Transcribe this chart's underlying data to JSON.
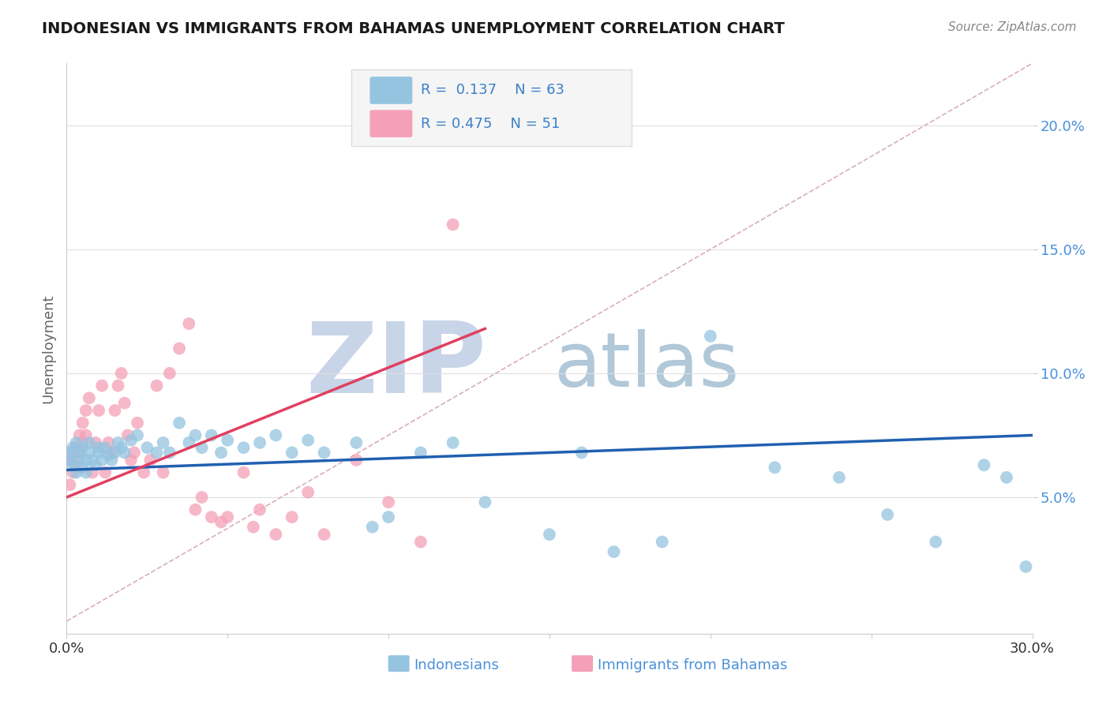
{
  "title": "INDONESIAN VS IMMIGRANTS FROM BAHAMAS UNEMPLOYMENT CORRELATION CHART",
  "source": "Source: ZipAtlas.com",
  "xlabel_blue": "Indonesians",
  "xlabel_pink": "Immigrants from Bahamas",
  "ylabel": "Unemployment",
  "R_blue": 0.137,
  "N_blue": 63,
  "R_pink": 0.475,
  "N_pink": 51,
  "xlim": [
    0.0,
    0.3
  ],
  "ylim": [
    -0.005,
    0.225
  ],
  "yticks": [
    0.05,
    0.1,
    0.15,
    0.2
  ],
  "ytick_labels": [
    "5.0%",
    "10.0%",
    "15.0%",
    "20.0%"
  ],
  "xticks": [
    0.0,
    0.3
  ],
  "xtick_labels": [
    "0.0%",
    "30.0%"
  ],
  "blue_scatter_x": [
    0.001,
    0.001,
    0.002,
    0.002,
    0.003,
    0.003,
    0.004,
    0.004,
    0.005,
    0.005,
    0.006,
    0.006,
    0.007,
    0.007,
    0.008,
    0.009,
    0.01,
    0.01,
    0.011,
    0.012,
    0.013,
    0.014,
    0.015,
    0.016,
    0.017,
    0.018,
    0.02,
    0.022,
    0.025,
    0.028,
    0.03,
    0.032,
    0.035,
    0.038,
    0.04,
    0.042,
    0.045,
    0.048,
    0.05,
    0.055,
    0.06,
    0.065,
    0.07,
    0.075,
    0.08,
    0.09,
    0.095,
    0.1,
    0.11,
    0.12,
    0.13,
    0.15,
    0.16,
    0.17,
    0.185,
    0.2,
    0.22,
    0.24,
    0.255,
    0.27,
    0.285,
    0.292,
    0.298
  ],
  "blue_scatter_y": [
    0.065,
    0.068,
    0.063,
    0.07,
    0.06,
    0.072,
    0.065,
    0.068,
    0.062,
    0.07,
    0.06,
    0.065,
    0.068,
    0.072,
    0.065,
    0.063,
    0.07,
    0.068,
    0.065,
    0.07,
    0.067,
    0.065,
    0.068,
    0.072,
    0.07,
    0.068,
    0.073,
    0.075,
    0.07,
    0.068,
    0.072,
    0.068,
    0.08,
    0.072,
    0.075,
    0.07,
    0.075,
    0.068,
    0.073,
    0.07,
    0.072,
    0.075,
    0.068,
    0.073,
    0.068,
    0.072,
    0.038,
    0.042,
    0.068,
    0.072,
    0.048,
    0.035,
    0.068,
    0.028,
    0.032,
    0.115,
    0.062,
    0.058,
    0.043,
    0.032,
    0.063,
    0.058,
    0.022
  ],
  "pink_scatter_x": [
    0.001,
    0.001,
    0.002,
    0.002,
    0.003,
    0.003,
    0.004,
    0.004,
    0.005,
    0.005,
    0.006,
    0.006,
    0.007,
    0.008,
    0.009,
    0.01,
    0.011,
    0.012,
    0.013,
    0.014,
    0.015,
    0.016,
    0.017,
    0.018,
    0.019,
    0.02,
    0.021,
    0.022,
    0.024,
    0.026,
    0.028,
    0.03,
    0.032,
    0.035,
    0.038,
    0.04,
    0.042,
    0.045,
    0.048,
    0.05,
    0.055,
    0.058,
    0.06,
    0.065,
    0.07,
    0.075,
    0.08,
    0.09,
    0.1,
    0.11,
    0.12
  ],
  "pink_scatter_y": [
    0.055,
    0.065,
    0.06,
    0.068,
    0.063,
    0.07,
    0.068,
    0.075,
    0.072,
    0.08,
    0.075,
    0.085,
    0.09,
    0.06,
    0.072,
    0.085,
    0.095,
    0.06,
    0.072,
    0.068,
    0.085,
    0.095,
    0.1,
    0.088,
    0.075,
    0.065,
    0.068,
    0.08,
    0.06,
    0.065,
    0.095,
    0.06,
    0.1,
    0.11,
    0.12,
    0.045,
    0.05,
    0.042,
    0.04,
    0.042,
    0.06,
    0.038,
    0.045,
    0.035,
    0.042,
    0.052,
    0.035,
    0.065,
    0.048,
    0.032,
    0.16
  ],
  "blue_color": "#94c4e0",
  "pink_color": "#f4a0b8",
  "blue_line_color": "#2060b0",
  "pink_line_color": "#e04060",
  "diag_line_color": "#d8b0b8",
  "background_color": "#ffffff",
  "watermark_zip": "ZIP",
  "watermark_atlas": "atlas",
  "watermark_color_zip": "#c8d4e8",
  "watermark_color_atlas": "#b0c8d8",
  "legend_box_color": "#f5f5f5",
  "legend_border_color": "#dddddd",
  "axis_color": "#cccccc",
  "tick_color": "#4a90d9",
  "title_color": "#1a1a1a",
  "source_color": "#888888",
  "ylabel_color": "#666666",
  "blue_line_start_x": 0.0,
  "blue_line_start_y": 0.061,
  "blue_line_end_x": 0.3,
  "blue_line_end_y": 0.075,
  "pink_line_start_x": 0.0,
  "pink_line_start_y": 0.05,
  "pink_line_end_x": 0.13,
  "pink_line_end_y": 0.118
}
